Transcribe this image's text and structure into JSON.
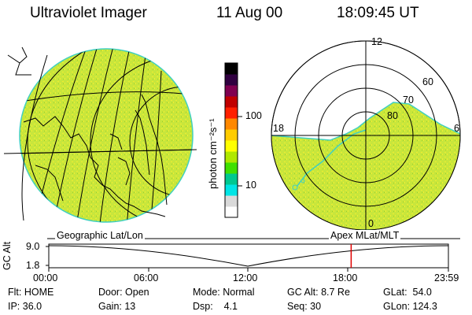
{
  "header": {
    "title": "Ultraviolet Imager",
    "date": "11 Aug 00",
    "time": "18:09:45 UT"
  },
  "colorbar": {
    "unit_label": "photon cm⁻²s⁻¹",
    "tick_100": "100",
    "tick_10": "10",
    "colors": [
      "#ffffff",
      "#d9d9d9",
      "#00e5e5",
      "#00c890",
      "#40e000",
      "#b0e800",
      "#ffff00",
      "#ffcc00",
      "#ff8800",
      "#ff2000",
      "#c00000",
      "#800050",
      "#300040",
      "#000000"
    ]
  },
  "polar_plot": {
    "label_top": "12",
    "label_left": "18",
    "label_right": "6",
    "label_bottom": "0",
    "ring_labels": [
      "60",
      "70",
      "80"
    ]
  },
  "panel_labels": {
    "left": "Geographic Lat/Lon",
    "right": "Apex MLat/MLT"
  },
  "altitude_plot": {
    "ylabel": "GC Alt",
    "y_top": "9.0",
    "y_bottom": "1.8",
    "x_ticks": [
      "00:00",
      "06:00",
      "12:00",
      "18:00",
      "23:59"
    ],
    "marker_time_hours": 18.16
  },
  "info": {
    "flt": "Flt: HOME",
    "ip": "IP: 36.0",
    "door": "Door: Open",
    "gain": "Gain: 13",
    "mode": "Mode: Normal",
    "dsp": "Dsp:    4.1",
    "gcalt": "GC Alt: 8.7 Re",
    "seq": "Seq: 30",
    "glat": "GLat:  54.0",
    "glon": "GLon: 124.3"
  },
  "colors": {
    "emission": "#c8e63c",
    "speckle": "#f0ee30",
    "edge": "#40d0c0",
    "marker": "#e00000"
  }
}
